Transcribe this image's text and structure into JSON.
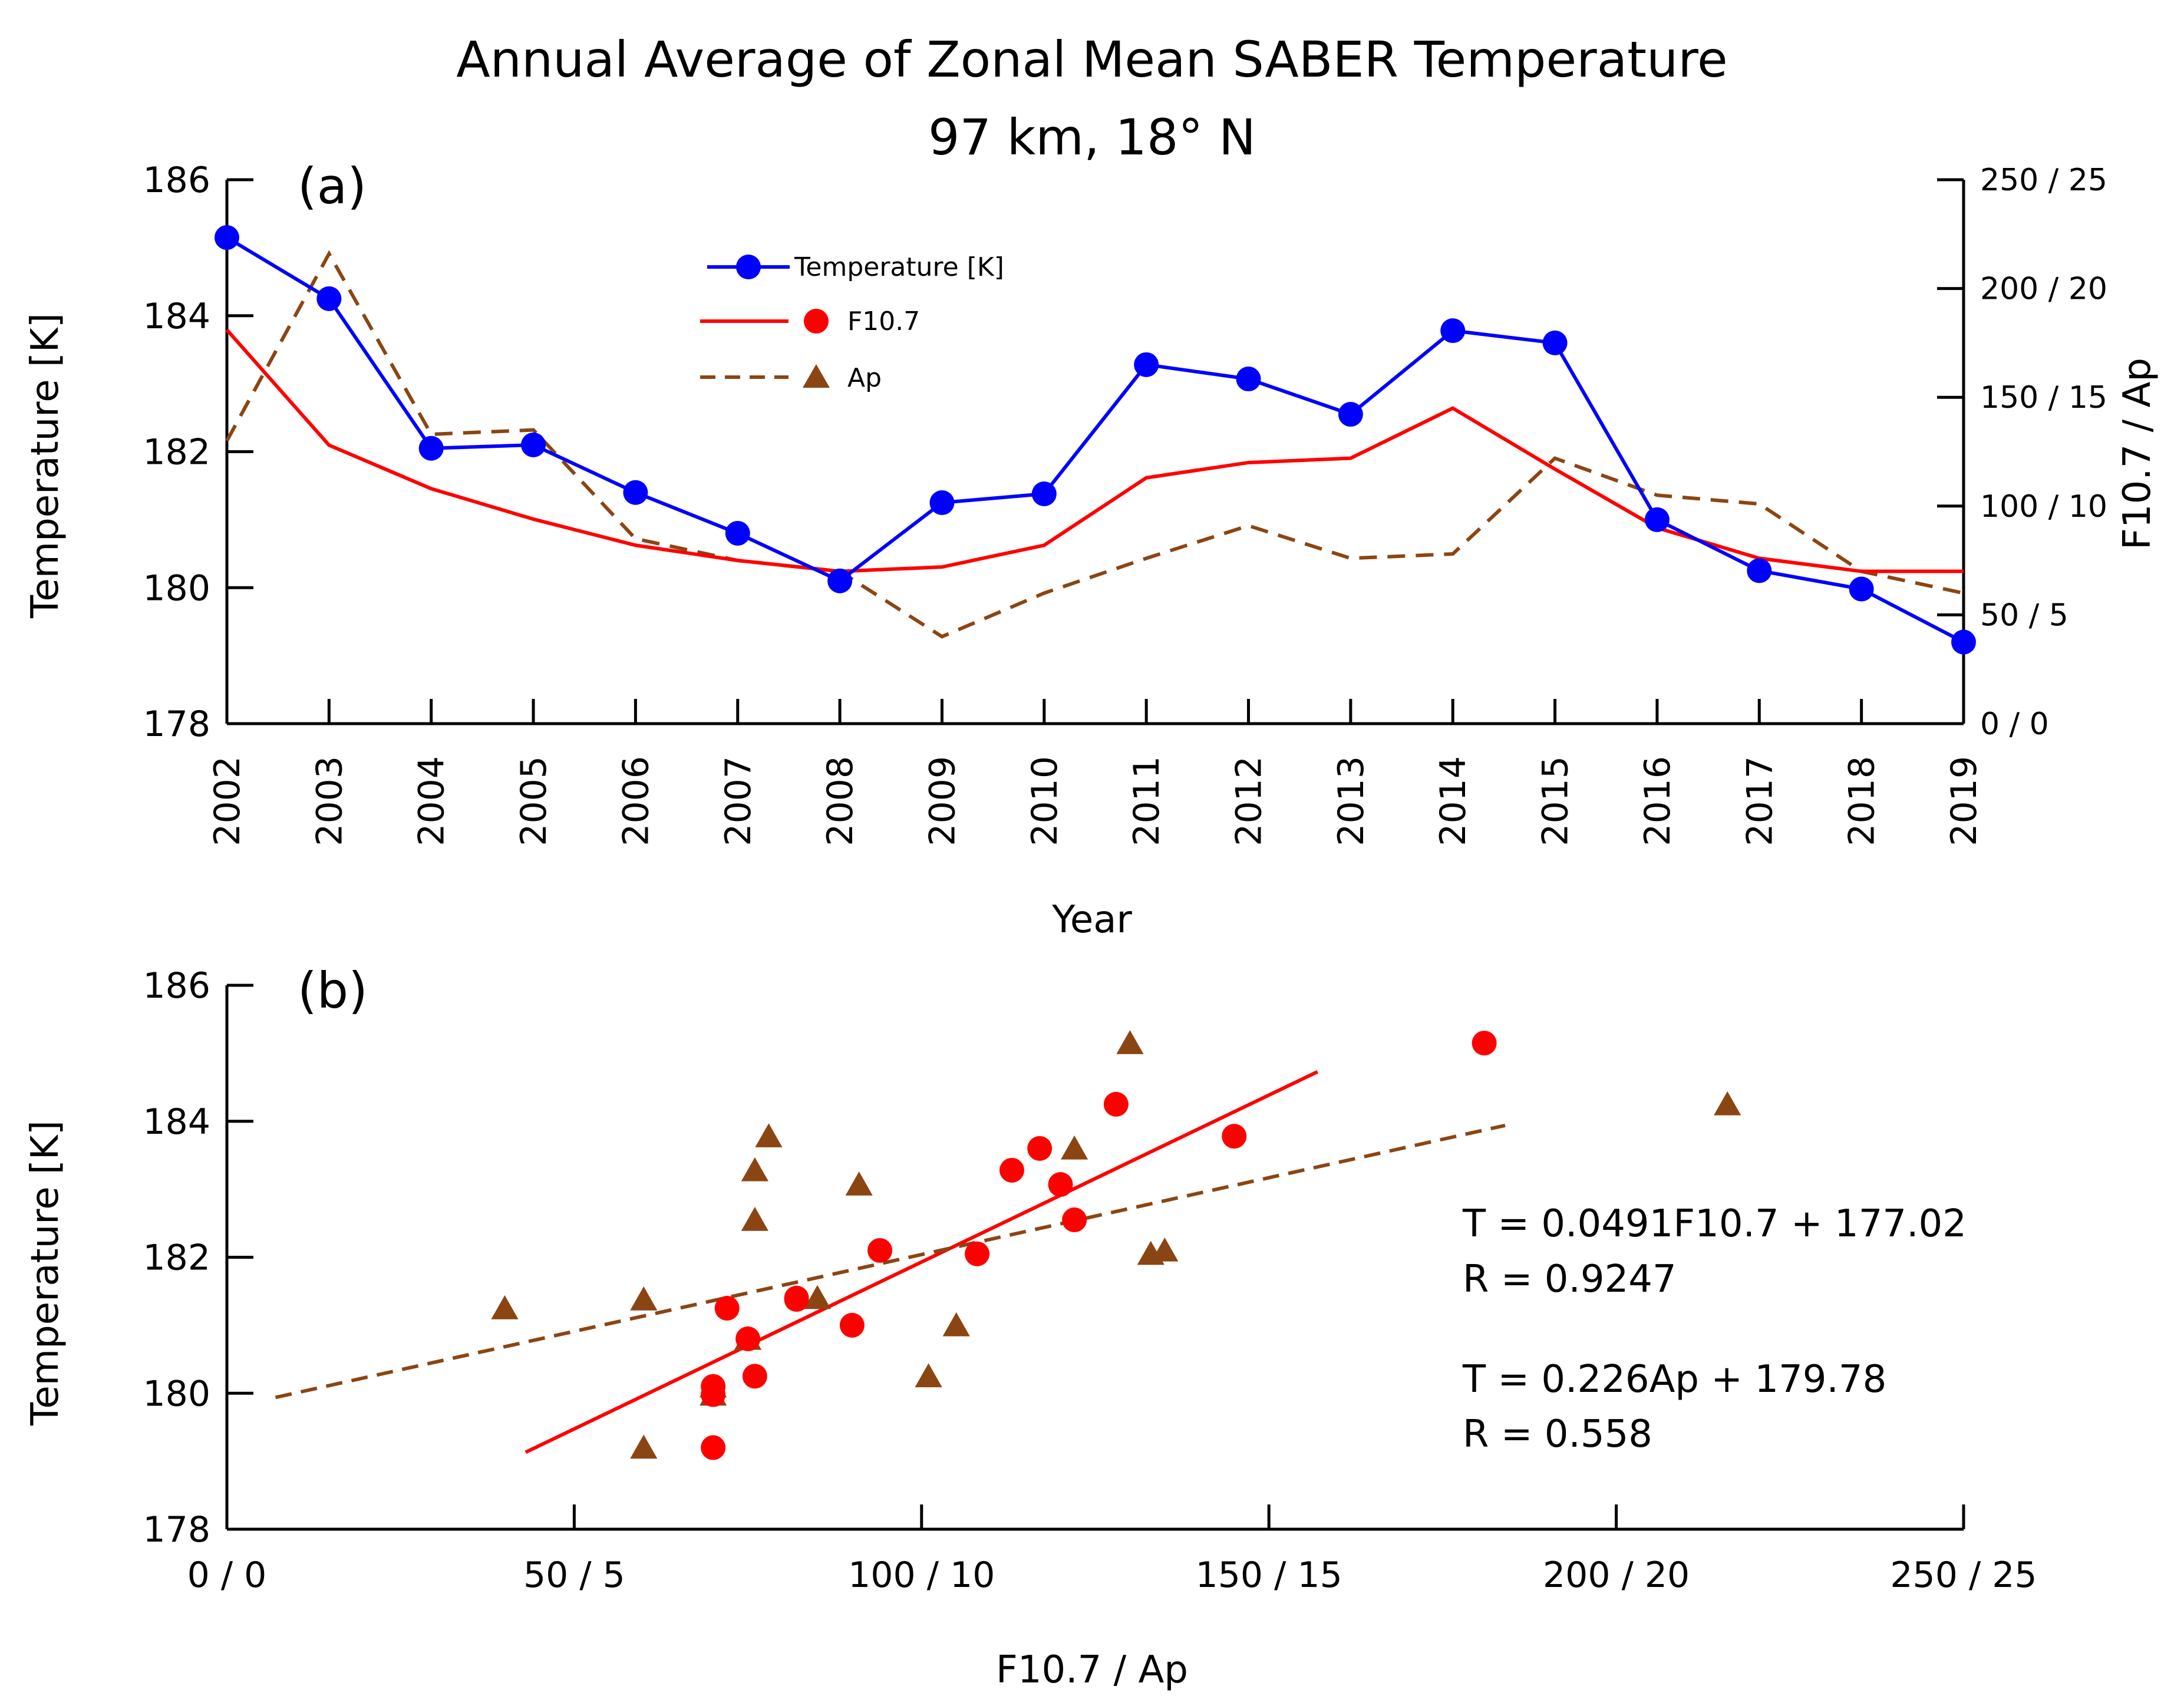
{
  "colors": {
    "temperature": "#0000ff",
    "f107": "#ff0000",
    "ap": "#8b4513",
    "axis": "#000000"
  },
  "chart_data": [
    {
      "id": "panel-a",
      "type": "line",
      "title": "Annual Average of Zonal Mean SABER Temperature",
      "subtitle": "97 km, 18° N",
      "panel_label": "(a)",
      "xlabel": "Year",
      "ylabel": "Temperature [K]",
      "y2label": "F10.7 / Ap",
      "x": [
        2002,
        2003,
        2004,
        2005,
        2006,
        2007,
        2008,
        2009,
        2010,
        2011,
        2012,
        2013,
        2014,
        2015,
        2016,
        2017,
        2018,
        2019
      ],
      "xtick_labels": [
        "2002",
        "2003",
        "2004",
        "2005",
        "2006",
        "2007",
        "2008",
        "2009",
        "2010",
        "2011",
        "2012",
        "2013",
        "2014",
        "2015",
        "2016",
        "2017",
        "2018",
        "2019"
      ],
      "ylim": [
        178,
        186
      ],
      "yticks": [
        178,
        180,
        182,
        184,
        186
      ],
      "ytick_labels": [
        "178",
        "180",
        "182",
        "184",
        "186"
      ],
      "y2lim": [
        0,
        250
      ],
      "y2ticks": [
        0,
        50,
        100,
        150,
        200,
        250
      ],
      "y2tick_labels": [
        "0 / 0",
        "50 / 5",
        "100 / 10",
        "150 / 15",
        "200 / 20",
        "250 / 25"
      ],
      "series": [
        {
          "name": "Temperature [K]",
          "axis": "left",
          "style": "line-marker",
          "values": [
            185.15,
            184.25,
            182.05,
            182.1,
            181.4,
            180.8,
            180.1,
            181.25,
            181.38,
            183.28,
            183.07,
            182.55,
            183.78,
            183.6,
            181.0,
            180.25,
            179.98,
            179.2
          ]
        },
        {
          "name": "F10.7",
          "axis": "right",
          "style": "line",
          "values": [
            181,
            128,
            108,
            94,
            82,
            75,
            70,
            72,
            82,
            113,
            120,
            122,
            145,
            117,
            90,
            76,
            70,
            70
          ]
        },
        {
          "name": "Ap",
          "axis": "right",
          "style": "dashed",
          "values": [
            13,
            21.6,
            13.3,
            13.5,
            8.5,
            7.5,
            7.0,
            4.0,
            6.0,
            7.6,
            9.1,
            7.6,
            7.8,
            12.2,
            10.5,
            10.1,
            7.0,
            6.0
          ]
        }
      ],
      "legend": [
        "Temperature [K]",
        "F10.7",
        "Ap"
      ]
    },
    {
      "id": "panel-b",
      "type": "scatter",
      "panel_label": "(b)",
      "xlabel": "F10.7 / Ap",
      "ylabel": "Temperature [K]",
      "xlim": [
        0,
        250
      ],
      "xticks": [
        0,
        50,
        100,
        150,
        200,
        250
      ],
      "xtick_labels": [
        "0 / 0",
        "50 / 5",
        "100 / 10",
        "150 / 15",
        "200 / 20",
        "250 / 25"
      ],
      "ylim": [
        178,
        186
      ],
      "yticks": [
        178,
        180,
        182,
        184,
        186
      ],
      "ytick_labels": [
        "178",
        "180",
        "182",
        "184",
        "186"
      ],
      "series": [
        {
          "name": "F10.7",
          "marker": "circle",
          "x": [
            181,
            128,
            108,
            94,
            82,
            75,
            70,
            72,
            82,
            113,
            120,
            122,
            145,
            117,
            90,
            76,
            70,
            70
          ],
          "y": [
            185.15,
            184.25,
            182.05,
            182.1,
            181.4,
            180.8,
            180.1,
            181.25,
            181.38,
            183.28,
            183.07,
            182.55,
            183.78,
            183.6,
            181.0,
            180.25,
            179.98,
            179.2
          ]
        },
        {
          "name": "Ap",
          "marker": "triangle",
          "x": [
            13,
            21.6,
            13.3,
            13.5,
            8.5,
            7.5,
            7.0,
            4.0,
            6.0,
            7.6,
            9.1,
            7.6,
            7.8,
            12.2,
            10.5,
            10.1,
            7.0,
            6.0
          ],
          "y": [
            185.15,
            184.25,
            182.05,
            182.1,
            181.4,
            180.8,
            180.1,
            181.25,
            181.38,
            183.28,
            183.07,
            182.55,
            183.78,
            183.6,
            181.0,
            180.25,
            179.98,
            179.2
          ]
        }
      ],
      "fits": [
        {
          "name": "F10.7 fit",
          "slope": 0.0491,
          "intercept": 177.02,
          "x_range": [
            43,
            157
          ],
          "style": "solid"
        },
        {
          "name": "Ap fit",
          "slope": 0.226,
          "intercept": 179.78,
          "x_range": [
            0.7,
            18.4
          ],
          "style": "dashed"
        }
      ],
      "annotations": {
        "f107_eq": "T = 0.0491F10.7 + 177.02",
        "f107_r": "R = 0.9247",
        "ap_eq": "T = 0.226Ap + 179.78",
        "ap_r": "R = 0.558"
      }
    }
  ]
}
